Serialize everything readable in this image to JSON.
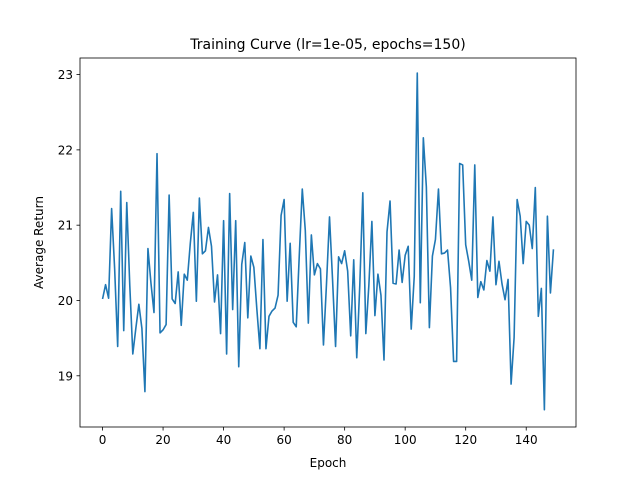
{
  "chart_data": {
    "type": "line",
    "title": "Training Curve (lr=1e-05, epochs=150)",
    "xlabel": "Epoch",
    "ylabel": "Average Return",
    "xlim": [
      -7.45,
      156.45
    ],
    "ylim": [
      18.32,
      23.22
    ],
    "xticks": [
      0,
      20,
      40,
      60,
      80,
      100,
      120,
      140
    ],
    "yticks": [
      19,
      20,
      21,
      22,
      23
    ],
    "grid": false,
    "line_color": "#1f77b4",
    "series": [
      {
        "values": [
          20.02,
          20.21,
          20.03,
          21.22,
          20.42,
          19.39,
          21.45,
          19.6,
          21.3,
          20.2,
          19.29,
          19.63,
          19.95,
          19.63,
          18.79,
          20.69,
          20.23,
          19.84,
          21.95,
          19.57,
          19.61,
          19.68,
          21.4,
          20.02,
          19.96,
          20.38,
          19.67,
          20.35,
          20.27,
          20.76,
          21.17,
          19.99,
          21.36,
          20.62,
          20.66,
          20.97,
          20.72,
          19.98,
          20.34,
          19.56,
          21.06,
          19.29,
          21.42,
          19.88,
          21.06,
          19.12,
          20.48,
          20.77,
          19.77,
          20.59,
          20.44,
          19.88,
          19.36,
          20.81,
          19.36,
          19.79,
          19.86,
          19.9,
          20.07,
          21.13,
          21.34,
          19.99,
          20.76,
          19.71,
          19.65,
          20.59,
          21.48,
          20.93,
          19.7,
          20.87,
          20.34,
          20.49,
          20.42,
          19.41,
          20.22,
          21.11,
          20.28,
          19.39,
          20.58,
          20.49,
          20.66,
          20.39,
          19.53,
          20.54,
          19.24,
          20.2,
          21.43,
          19.56,
          20.2,
          21.05,
          19.8,
          20.35,
          20.07,
          19.21,
          20.91,
          21.32,
          20.23,
          20.22,
          20.67,
          20.24,
          20.6,
          20.72,
          19.62,
          20.32,
          23.02,
          19.97,
          22.16,
          21.51,
          19.64,
          20.59,
          20.81,
          21.48,
          20.62,
          20.63,
          20.67,
          20.17,
          19.19,
          19.19,
          21.82,
          21.8,
          20.74,
          20.52,
          20.27,
          21.8,
          20.04,
          20.25,
          20.14,
          20.53,
          20.39,
          21.11,
          20.21,
          20.52,
          20.22,
          20.01,
          20.28,
          18.89,
          19.51,
          21.34,
          21.12,
          20.49,
          21.05,
          21.0,
          20.69,
          21.5,
          19.79,
          20.16,
          18.55,
          21.12,
          20.1,
          20.68
        ]
      }
    ]
  }
}
